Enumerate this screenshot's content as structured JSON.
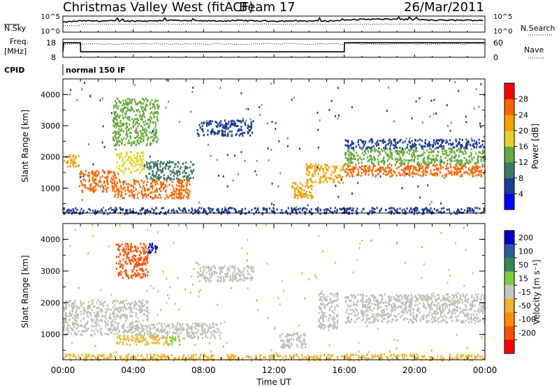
{
  "header": {
    "station": "Christmas Valley West (fitACF)",
    "beam": "Beam 17",
    "date": "26/Mar/2011"
  },
  "panels": {
    "nsky": {
      "left_label": "N.Sky",
      "right_label": "N.Search",
      "left_ticks": [
        "10^5",
        "10^0"
      ],
      "right_ticks": [
        "10^5",
        "10^0"
      ]
    },
    "freq": {
      "left_label_1": "Freq.",
      "left_label_2": "[MHz]",
      "right_label": "Nave",
      "left_ticks": [
        "18",
        "8"
      ],
      "right_ticks": [
        "60",
        "0"
      ]
    },
    "cpid": {
      "label": "CPID",
      "value": "normal 150 IF"
    },
    "power": {
      "ylabel": "Slant Range [km]",
      "yticks": [
        "1000",
        "2000",
        "3000",
        "4000"
      ],
      "cbar_label": "Power [dB]",
      "cbar_ticks": [
        "4",
        "8",
        "12",
        "16",
        "20",
        "24",
        "28"
      ],
      "cbar_colors": [
        "#0000ff",
        "#1e3c96",
        "#3c7864",
        "#64aa3c",
        "#e6d228",
        "#f5a000",
        "#ff6400",
        "#ff0000"
      ]
    },
    "velocity": {
      "ylabel": "Slant Range [km]",
      "yticks": [
        "1000",
        "2000",
        "3000",
        "4000"
      ],
      "cbar_label": "Velocity [m s⁻¹]",
      "cbar_ticks": [
        "200",
        "100",
        "50",
        "15",
        "-15",
        "-50",
        "-100",
        "-200"
      ],
      "cbar_colors": [
        "#0000cc",
        "#2e5aa0",
        "#2e8b57",
        "#7ccd3c",
        "#c8c8c0",
        "#f0b428",
        "#ff8c00",
        "#ff5000",
        "#ff0000"
      ],
      "ground_scatter_color": "#c0c0b8"
    }
  },
  "xaxis": {
    "ticks": [
      "00:00",
      "04:00",
      "08:00",
      "12:00",
      "16:00",
      "20:00",
      "00:00"
    ],
    "label": "Time UT"
  },
  "chart_data": [
    {
      "type": "line",
      "name": "N.Sky / N.Search noise",
      "x": [
        0,
        1,
        2,
        3,
        4,
        5,
        6,
        7,
        8,
        9,
        10,
        11,
        12,
        13,
        14,
        15,
        16,
        17,
        18,
        19,
        20,
        21,
        22,
        23,
        24
      ],
      "series": [
        {
          "name": "N.Sky",
          "values": [
            1000,
            3000,
            3000,
            3000,
            3000,
            3000,
            5000,
            3000,
            3000,
            3000,
            4000,
            3000,
            3000,
            3000,
            3000,
            3000,
            4000,
            10000,
            10000,
            10000,
            8000,
            5000,
            5000,
            5000,
            5000
          ]
        },
        {
          "name": "N.Search",
          "values": [
            100,
            300,
            300,
            300,
            300,
            300,
            300,
            300,
            300,
            300,
            300,
            300,
            300,
            300,
            300,
            300,
            300,
            300,
            300,
            300,
            300,
            300,
            300,
            300,
            300
          ]
        }
      ],
      "ylim": [
        "10^0",
        "10^5"
      ],
      "xlim": [
        0,
        24
      ]
    },
    {
      "type": "line",
      "name": "Frequency / Nave",
      "x": [
        0,
        0.05,
        1,
        1.01,
        16,
        16.01,
        24
      ],
      "series": [
        {
          "name": "Freq. [MHz]",
          "values": [
            11,
            16,
            16,
            11,
            11,
            16,
            16
          ]
        },
        {
          "name": "Nave",
          "values": [
            40,
            45,
            45,
            45,
            45,
            45,
            45
          ]
        }
      ],
      "ylim": [
        8,
        18
      ],
      "xlim": [
        0,
        24
      ]
    },
    {
      "type": "heatmap",
      "name": "Power [dB]",
      "x_unit": "hours UT",
      "y_unit": "km",
      "xlim": [
        0,
        24
      ],
      "ylim": [
        200,
        4500
      ],
      "regions": [
        {
          "x": [
            0.0,
            0.9
          ],
          "y": [
            1700,
            2100
          ],
          "level": 22
        },
        {
          "x": [
            0.9,
            3.0
          ],
          "y": [
            900,
            1600
          ],
          "level": 26
        },
        {
          "x": [
            3.0,
            4.6
          ],
          "y": [
            1500,
            2200
          ],
          "level": 18
        },
        {
          "x": [
            2.9,
            7.2
          ],
          "y": [
            700,
            1300
          ],
          "level": 24
        },
        {
          "x": [
            4.6,
            7.4
          ],
          "y": [
            1300,
            1900
          ],
          "level": 10
        },
        {
          "x": [
            2.8,
            5.4
          ],
          "y": [
            2400,
            3900
          ],
          "level": 12
        },
        {
          "x": [
            7.6,
            10.8
          ],
          "y": [
            2700,
            3200
          ],
          "level": 5
        },
        {
          "x": [
            12.9,
            14.2
          ],
          "y": [
            700,
            1200
          ],
          "level": 22
        },
        {
          "x": [
            13.8,
            16.0
          ],
          "y": [
            1200,
            1800
          ],
          "level": 22
        },
        {
          "x": [
            16.0,
            24.0
          ],
          "y": [
            1400,
            1800
          ],
          "level": 26
        },
        {
          "x": [
            16.0,
            24.0
          ],
          "y": [
            1800,
            2300
          ],
          "level": 14
        },
        {
          "x": [
            16.0,
            24.0
          ],
          "y": [
            2300,
            2600
          ],
          "level": 6
        },
        {
          "x": [
            0.0,
            24.0
          ],
          "y": [
            200,
            400
          ],
          "level": 6
        }
      ]
    },
    {
      "type": "heatmap",
      "name": "Velocity [m s^-1]",
      "x_unit": "hours UT",
      "y_unit": "km",
      "xlim": [
        0,
        24
      ],
      "ylim": [
        200,
        4500
      ],
      "regions": [
        {
          "x": [
            0.0,
            4.8
          ],
          "y": [
            1000,
            2100
          ],
          "level": "gs"
        },
        {
          "x": [
            4.8,
            9.0
          ],
          "y": [
            900,
            1400
          ],
          "level": "gs"
        },
        {
          "x": [
            3.0,
            6.0
          ],
          "y": [
            700,
            1000
          ],
          "level": -40
        },
        {
          "x": [
            6.0,
            6.6
          ],
          "y": [
            700,
            1000
          ],
          "level": 30
        },
        {
          "x": [
            7.6,
            10.8
          ],
          "y": [
            2700,
            3200
          ],
          "level": "gs"
        },
        {
          "x": [
            12.3,
            13.8
          ],
          "y": [
            600,
            1100
          ],
          "level": "gs"
        },
        {
          "x": [
            14.5,
            15.6
          ],
          "y": [
            1200,
            2400
          ],
          "level": "gs"
        },
        {
          "x": [
            16.0,
            24.0
          ],
          "y": [
            1400,
            2300
          ],
          "level": "gs"
        },
        {
          "x": [
            3.0,
            4.8
          ],
          "y": [
            2800,
            3900
          ],
          "level": -150
        },
        {
          "x": [
            4.8,
            5.4
          ],
          "y": [
            3600,
            3900
          ],
          "level": 200
        },
        {
          "x": [
            0.0,
            24.0
          ],
          "y": [
            200,
            400
          ],
          "level": -30
        }
      ]
    }
  ]
}
